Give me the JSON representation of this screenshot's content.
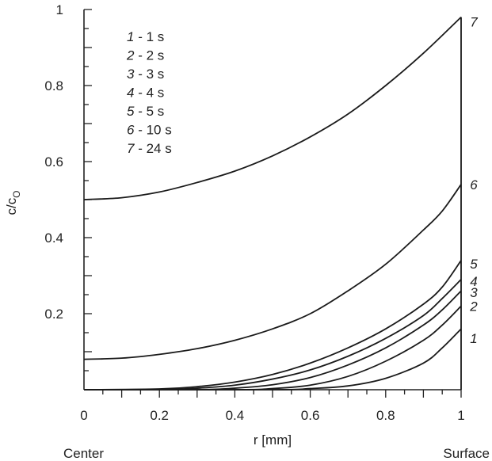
{
  "chart_data": {
    "type": "line",
    "title": "",
    "xlabel": "r [mm]",
    "ylabel_main": "c/c",
    "ylabel_sub": "O",
    "xlim": [
      0,
      1
    ],
    "ylim": [
      0,
      1
    ],
    "x_ticks": [
      0,
      0.2,
      0.4,
      0.6,
      0.8,
      1
    ],
    "x_tick_labels": [
      "0",
      "0.2",
      "0.4",
      "0.6",
      "0.8",
      "1"
    ],
    "y_ticks": [
      0.2,
      0.4,
      0.6,
      0.8,
      1
    ],
    "y_tick_labels": [
      "0.2",
      "0.4",
      "0.6",
      "0.8",
      "1"
    ],
    "x_end_labels": {
      "left": "Center",
      "right": "Surface"
    },
    "legend_position": "top-left",
    "legend": [
      {
        "num": "1",
        "text": " - 1 s"
      },
      {
        "num": "2",
        "text": " - 2 s"
      },
      {
        "num": "3",
        "text": " - 3 s"
      },
      {
        "num": "4",
        "text": " - 4 s"
      },
      {
        "num": "5",
        "text": " - 5 s"
      },
      {
        "num": "6",
        "text": " - 10 s"
      },
      {
        "num": "7",
        "text": " - 24 s"
      }
    ],
    "series": [
      {
        "name": "1",
        "time_s": 1,
        "x": [
          0,
          0.5,
          0.6,
          0.7,
          0.8,
          0.9,
          0.95,
          1.0
        ],
        "y": [
          0,
          0,
          0.003,
          0.01,
          0.03,
          0.07,
          0.11,
          0.16
        ]
      },
      {
        "name": "2",
        "time_s": 2,
        "x": [
          0,
          0.4,
          0.5,
          0.6,
          0.7,
          0.8,
          0.9,
          0.95,
          1.0
        ],
        "y": [
          0,
          0,
          0.003,
          0.012,
          0.035,
          0.075,
          0.13,
          0.17,
          0.22
        ]
      },
      {
        "name": "3",
        "time_s": 3,
        "x": [
          0,
          0.3,
          0.4,
          0.5,
          0.6,
          0.7,
          0.8,
          0.9,
          0.95,
          1.0
        ],
        "y": [
          0,
          0,
          0.004,
          0.013,
          0.032,
          0.065,
          0.11,
          0.17,
          0.21,
          0.26
        ]
      },
      {
        "name": "4",
        "time_s": 4,
        "x": [
          0,
          0.2,
          0.3,
          0.4,
          0.5,
          0.6,
          0.7,
          0.8,
          0.9,
          0.95,
          1.0
        ],
        "y": [
          0,
          0,
          0.004,
          0.012,
          0.028,
          0.052,
          0.088,
          0.135,
          0.195,
          0.24,
          0.29
        ]
      },
      {
        "name": "5",
        "time_s": 5,
        "x": [
          0,
          0.2,
          0.3,
          0.4,
          0.5,
          0.6,
          0.7,
          0.8,
          0.9,
          0.95,
          1.0
        ],
        "y": [
          0,
          0.002,
          0.008,
          0.02,
          0.04,
          0.07,
          0.11,
          0.16,
          0.225,
          0.27,
          0.34
        ]
      },
      {
        "name": "6",
        "time_s": 10,
        "x": [
          0,
          0.1,
          0.2,
          0.3,
          0.4,
          0.5,
          0.6,
          0.7,
          0.8,
          0.9,
          0.95,
          1.0
        ],
        "y": [
          0.08,
          0.083,
          0.093,
          0.108,
          0.13,
          0.16,
          0.2,
          0.26,
          0.33,
          0.42,
          0.47,
          0.54
        ]
      },
      {
        "name": "7",
        "time_s": 24,
        "x": [
          0,
          0.1,
          0.2,
          0.3,
          0.4,
          0.5,
          0.6,
          0.7,
          0.8,
          0.9,
          1.0
        ],
        "y": [
          0.5,
          0.505,
          0.52,
          0.545,
          0.575,
          0.615,
          0.665,
          0.725,
          0.8,
          0.885,
          0.98
        ]
      }
    ]
  }
}
